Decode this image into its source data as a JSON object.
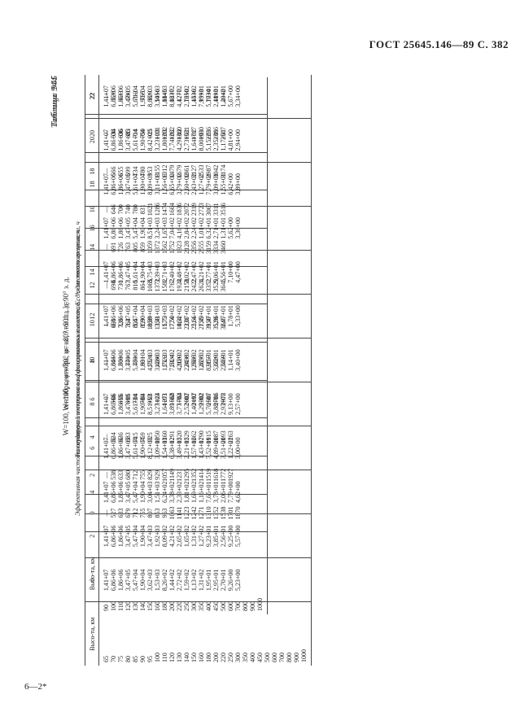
{
  "header": "ГОСТ 25645.146—89 С. 382",
  "footer": "6—2*",
  "table944": {
    "name": "Таблица 944",
    "title": "W=100, сентябрь, φ=−80° ю. ш., λ=90° з. д.",
    "subtitle": "Температура электронов на фиксированных высотах, К, для местного времени, ч",
    "col_header_alt": "Высо-та, км",
    "hours": [
      "0",
      "2",
      "4",
      "6",
      "8",
      "10",
      "12",
      "14",
      "16",
      "18",
      "20",
      "22"
    ],
    "altitudes": [
      "90",
      "100",
      "110",
      "120",
      "130",
      "140",
      "150",
      "160",
      "180",
      "200",
      "220",
      "250",
      "300",
      "350",
      "400",
      "450",
      "500",
      "600",
      "700",
      "800",
      "900",
      "1000"
    ],
    "columns": [
      [
        "—",
        "527",
        "633",
        "679",
        "712",
        "755",
        "807",
        "853",
        "963",
        "1063",
        "1141",
        "1223",
        "1242",
        "1271",
        "1310",
        "1352",
        "1538",
        "1701",
        "1870",
        "",
        "",
        ""
      ],
      [
        "—",
        "538",
        "633",
        "680",
        "712",
        "755",
        "829",
        "929",
        "1057",
        "1149",
        "1231",
        "1295",
        "1352",
        "1414",
        "1519",
        "1618",
        "1772",
        "1927",
        "",
        "",
        "",
        ""
      ],
      [
        "—",
        "534",
        "636",
        "683",
        "715",
        "759",
        "925",
        "1050",
        "1160",
        "1291",
        "1520",
        "1529",
        "1662",
        "1790",
        "1915",
        "2087",
        "2093",
        "2263",
        "",
        "",
        "",
        ""
      ],
      [
        "—",
        "566",
        "655",
        "699",
        "734",
        "780",
        "953",
        "1124",
        "1271",
        "1568",
        "1784",
        "2007",
        "2197",
        "2302",
        "2587",
        "2786",
        "2973",
        "",
        "",
        "",
        "",
        ""
      ],
      [
        "—",
        "646",
        "700",
        "740",
        "780",
        "831",
        "1021",
        "1286",
        "1522",
        "1924",
        "2120",
        "2438",
        "2585",
        "2835",
        "3157",
        "3329",
        "3469",
        "",
        "",
        "",
        "",
        ""
      ],
      [
        "—",
        "691",
        "726",
        "763",
        "805",
        "859",
        "1059",
        "1359",
        "1575",
        "1774",
        "1964",
        "2231",
        "2514",
        "2755",
        "3159",
        "3528",
        "3645",
        "",
        "",
        "",
        "",
        ""
      ],
      [
        "—",
        "698",
        "730",
        "767",
        "810",
        "864",
        "1065",
        "1372",
        "1582",
        "1762",
        "1923",
        "2158",
        "2422",
        "2624",
        "3352",
        "3529",
        "3645",
        "",
        "",
        "",
        "",
        ""
      ],
      [
        "—",
        "691",
        "726",
        "763",
        "805",
        "859",
        "1059",
        "1372",
        "1562",
        "1752",
        "1923",
        "2128",
        "2356",
        "2555",
        "3159",
        "3334",
        "3460",
        "",
        "",
        "",
        "",
        ""
      ],
      [
        "—",
        "646",
        "700",
        "740",
        "780",
        "831",
        "1021",
        "1286",
        "1474",
        "1664",
        "1836",
        "2072",
        "2319",
        "2723",
        "3067",
        "3311",
        "3516",
        "",
        "",
        "",
        "",
        ""
      ],
      [
        "—",
        "566",
        "655",
        "699",
        "734",
        "780",
        "953",
        "1155",
        "1312",
        "1479",
        "1679",
        "1861",
        "3127",
        "2533",
        "2987",
        "3042",
        "3174",
        "",
        "",
        "",
        "",
        ""
      ],
      [
        "—",
        "534",
        "636",
        "683",
        "714",
        "759",
        "925",
        "1101",
        "1202",
        "1262",
        "1360",
        "1531",
        "1717",
        "1930",
        "2236",
        "2386",
        "2507",
        "",
        "",
        "",
        "",
        ""
      ],
      [
        "—",
        "528",
        "633",
        "680",
        "712",
        "755",
        "929",
        "1056",
        "1145",
        "1237",
        "1277",
        "1350",
        "1436",
        "1593",
        "1734",
        "1893",
        "2042",
        "",
        "",
        "",
        "",
        ""
      ]
    ]
  },
  "table945": {
    "name": "Таблица 945",
    "title": "W=100, сентябрь, φ=−80° ю. ш., λ=90° з. д.",
    "subtitle": "Эффективная частота соударений электронов на фиксированных высотах, с⁻¹, для местного времени, ч",
    "col_header_alt": "Высо-та, км",
    "hours": [
      "0",
      "2",
      "4",
      "6",
      "8",
      "10",
      "12",
      "14",
      "16",
      "18",
      "20",
      "22"
    ],
    "altitudes": [
      "65",
      "70",
      "75",
      "80",
      "85",
      "90",
      "95",
      "100",
      "110",
      "120",
      "130",
      "140",
      "150",
      "160",
      "180",
      "200",
      "220",
      "250",
      "300",
      "350",
      "400",
      "450",
      "500",
      "600",
      "700",
      "800",
      "900",
      "1000"
    ],
    "columns": [
      [
        "1,41+07",
        "6,86+06",
        "1,86+06",
        "3,47+05",
        "5,47+04",
        "1,90+04",
        "3,62+03",
        "1,53+03",
        "8,26+02",
        "1,44+02",
        "2,72+02",
        "1,59+02",
        "1,13+02",
        "1,31+02",
        "1,95+01",
        "2,95+01",
        "2,70+01",
        "9,26+00",
        "5,23+00",
        "",
        "",
        "",
        "",
        "",
        "",
        "",
        "",
        ""
      ],
      [
        "1,41+07",
        "6,86+06",
        "1,86+06",
        "3,47+05",
        "5,47+04",
        "1,90+04",
        "3,47+03",
        "1,92+03",
        "8,09+02",
        "4,21+02",
        "2,65+02",
        "1,65+02",
        "1,31+02",
        "1,27+02",
        "9,23+01",
        "3,85+01",
        "2,56+01",
        "9,25+00",
        "5,57+00",
        "",
        "",
        "",
        "",
        "",
        "",
        "",
        "",
        ""
      ],
      [
        "1,41+07",
        "6,86+06",
        "1,86+06",
        "3,47+05",
        "5,47+04",
        "1,90+04",
        "3,04+03",
        "1,51+03",
        "6,24+02",
        "3,38+02",
        "2,33+02",
        "1,81+02",
        "1,69+02",
        "1,16+02",
        "7,65+01",
        "3,78+01",
        "2,06+01",
        "7,79+00",
        "4,62+00",
        "",
        "",
        "",
        "",
        "",
        "",
        "",
        "",
        ""
      ],
      [
        "1,41+07",
        "6,86+06",
        "1,86+06",
        "3,47+05",
        "5,61+04",
        "1,90+04",
        "8,12+03",
        "3,09+03",
        "1,54+03",
        "6,38+02",
        "3,49+02",
        "2,21+02",
        "1,57+02",
        "1,43+02",
        "7,52+01",
        "4,89+01",
        "3,51+01",
        "1,22+01",
        "3,00+00",
        "",
        "",
        "",
        "",
        "",
        "",
        "",
        "",
        ""
      ],
      [
        "1,41+07",
        "6,86+06",
        "1,86+06",
        "3,47+05",
        "5,61+04",
        "1,90+04",
        "8,51+03",
        "3,27+03",
        "1,64+03",
        "3,89+02",
        "3,77+02",
        "2,52+02",
        "1,40+02",
        "1,29+02",
        "5,76+01",
        "3,88+01",
        "2,93+01",
        "9,13+00",
        "2,57+00",
        "",
        "",
        "",
        "",
        "",
        "",
        "",
        "",
        ""
      ],
      [
        "1,41+07",
        "6,86+06",
        "1,86+06",
        "3,47+05",
        "5,47+04",
        "1,90+04",
        "4,75+03",
        "3,40+03",
        "1,71+03",
        "7,31+02",
        "4,10+02",
        "2,81+02",
        "1,96+02",
        "1,62+02",
        "8,95+01",
        "5,60+01",
        "2,55+01",
        "1,14+01",
        "3,40+00",
        "",
        "",
        "",
        "",
        "",
        "",
        "",
        "",
        ""
      ],
      [
        "1,41+07",
        "6,86+06",
        "1,86+06",
        "3,47+05",
        "5,47+04",
        "1,90+04",
        "8,89+03",
        "3,41+03",
        "1,73+03",
        "7,50+02",
        "4,32+02",
        "3,07+02",
        "2,66+02",
        "1,49+02",
        "9,47+01",
        "5,96+01",
        "2,97+01",
        "1,78+01",
        "5,33+00",
        "",
        "",
        "",
        "",
        "",
        "",
        "",
        "",
        ""
      ],
      [
        "1,41+07",
        "6,86+06",
        "1,86+06",
        "3,47+05",
        "5,61+04",
        "1,90+04",
        "8,75+03",
        "3,39+03",
        "1,71+03",
        "7,40+02",
        "4,48+02",
        "3,02+02",
        "2,47+02",
        "1,21+02",
        "7,77+01",
        "5,06+01",
        "1,56+01",
        "7,10+00",
        "4,47+00",
        "",
        "",
        "",
        "",
        "",
        "",
        "",
        "",
        ""
      ],
      [
        "1,41+07",
        "6,86+06",
        "1,86+06",
        "3,47+05",
        "5,47+04",
        "1,90+04",
        "8,51+03",
        "3,24+03",
        "1,65+03",
        "7,04+02",
        "4,16+02",
        "2,84+02",
        "2,24+02",
        "1,01+02",
        "6,32+01",
        "2,71+01",
        "1,31+01",
        "5,62+00",
        "3,36+00",
        "",
        "",
        "",
        "",
        "",
        "",
        "",
        "",
        ""
      ],
      [
        "1,41+07",
        "6,86+06",
        "1,86+06",
        "3,47+05",
        "5,61+04",
        "1,90+04",
        "8,09+03",
        "3,11+03",
        "1,56+03",
        "6,65+02",
        "3,79+02",
        "2,60+02",
        "2,43+02",
        "1,27+02",
        "7,79+01",
        "3,09+01",
        "1,55+01",
        "6,42+00",
        "3,89+00",
        "",
        "",
        "",
        "",
        "",
        "",
        "",
        "",
        ""
      ],
      [
        "1,41+07",
        "6,86+06",
        "1,86+06",
        "3,47+05",
        "5,61+04",
        "1,90+04",
        "8,42+03",
        "3,23+03",
        "1,80+03",
        "7,74+02",
        "4,29+02",
        "2,73+02",
        "1,64+02",
        "8,00+01",
        "5,15+01",
        "2,35+01",
        "1,17+01",
        "4,81+00",
        "2,94+00",
        "",
        "",
        "",
        "",
        "",
        "",
        "",
        "",
        ""
      ],
      [
        "1,41+07",
        "6,86+06",
        "1,86+06",
        "3,47+05",
        "5,61+04",
        "1,90+04",
        "8,08+03",
        "3,54+03",
        "1,88+03",
        "8,08+02",
        "4,42+02",
        "2,76+02",
        "1,45+02",
        "7,99+01",
        "5,70+01",
        "2,41+01",
        "1,49+01",
        "5,67+00",
        "3,34+00",
        "",
        "",
        "",
        "",
        "",
        "",
        "",
        "",
        ""
      ]
    ]
  }
}
